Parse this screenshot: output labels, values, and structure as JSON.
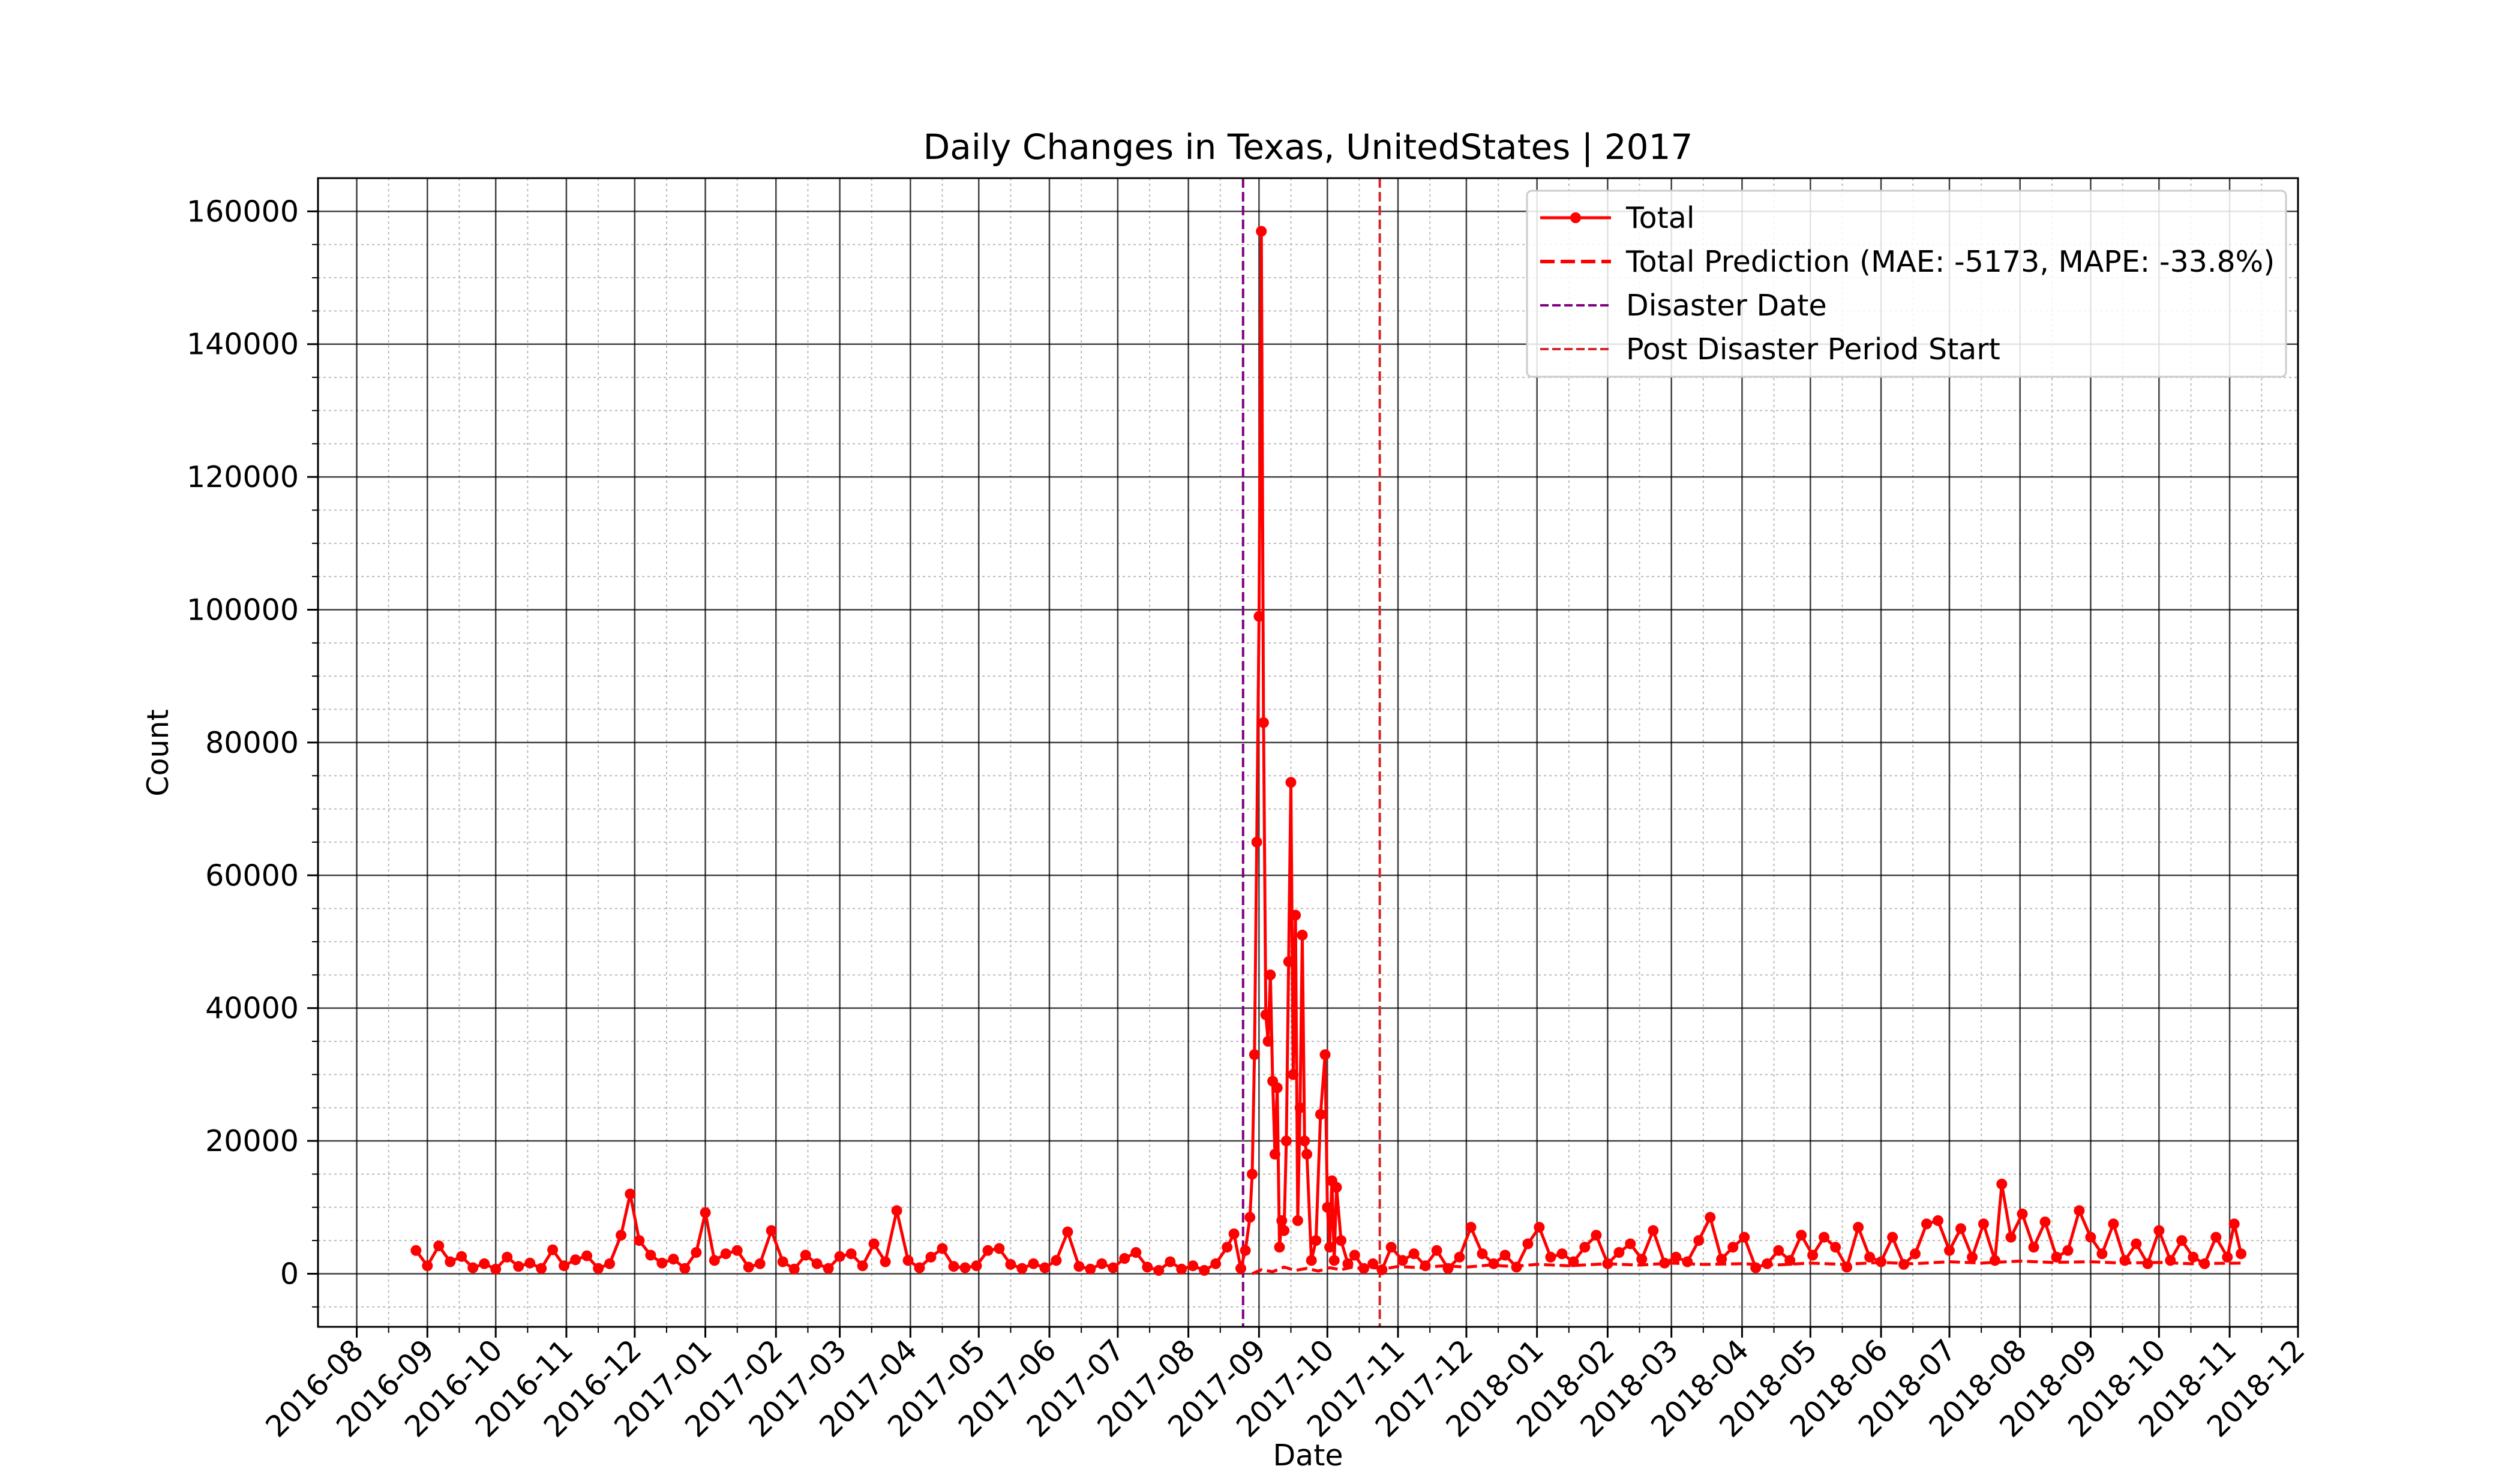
{
  "chart_data": {
    "type": "line",
    "title": "Daily Changes in Texas, UnitedStates | 2017",
    "xlabel": "Date",
    "ylabel": "Count",
    "xlim": [
      "2016-07-15",
      "2018-12-01"
    ],
    "ylim": [
      -8000,
      165000
    ],
    "grid": true,
    "legend_position": "top-right",
    "x_ticks": [
      "2016-08",
      "2016-09",
      "2016-10",
      "2016-11",
      "2016-12",
      "2017-01",
      "2017-02",
      "2017-03",
      "2017-04",
      "2017-05",
      "2017-06",
      "2017-07",
      "2017-08",
      "2017-09",
      "2017-10",
      "2017-11",
      "2017-12",
      "2018-01",
      "2018-02",
      "2018-03",
      "2018-04",
      "2018-05",
      "2018-06",
      "2018-07",
      "2018-08",
      "2018-09",
      "2018-10",
      "2018-11",
      "2018-12"
    ],
    "y_ticks": [
      0,
      20000,
      40000,
      60000,
      80000,
      100000,
      120000,
      140000,
      160000
    ],
    "series": [
      {
        "name": "Total",
        "color": "#ff0000",
        "style": "solid-markers",
        "points": [
          [
            "2016-08-27",
            3500
          ],
          [
            "2016-09-01",
            1200
          ],
          [
            "2016-09-06",
            4200
          ],
          [
            "2016-09-11",
            1800
          ],
          [
            "2016-09-16",
            2600
          ],
          [
            "2016-09-21",
            900
          ],
          [
            "2016-09-26",
            1500
          ],
          [
            "2016-10-01",
            700
          ],
          [
            "2016-10-06",
            2500
          ],
          [
            "2016-10-11",
            1100
          ],
          [
            "2016-10-16",
            1600
          ],
          [
            "2016-10-21",
            800
          ],
          [
            "2016-10-26",
            3600
          ],
          [
            "2016-10-31",
            1200
          ],
          [
            "2016-11-05",
            2100
          ],
          [
            "2016-11-10",
            2700
          ],
          [
            "2016-11-15",
            800
          ],
          [
            "2016-11-20",
            1500
          ],
          [
            "2016-11-25",
            5800
          ],
          [
            "2016-11-29",
            12000
          ],
          [
            "2016-12-03",
            5000
          ],
          [
            "2016-12-08",
            2800
          ],
          [
            "2016-12-13",
            1600
          ],
          [
            "2016-12-18",
            2200
          ],
          [
            "2016-12-23",
            800
          ],
          [
            "2016-12-28",
            3200
          ],
          [
            "2017-01-01",
            9200
          ],
          [
            "2017-01-05",
            2000
          ],
          [
            "2017-01-10",
            3000
          ],
          [
            "2017-01-15",
            3500
          ],
          [
            "2017-01-20",
            1000
          ],
          [
            "2017-01-25",
            1500
          ],
          [
            "2017-01-30",
            6500
          ],
          [
            "2017-02-04",
            1800
          ],
          [
            "2017-02-09",
            700
          ],
          [
            "2017-02-14",
            2800
          ],
          [
            "2017-02-19",
            1500
          ],
          [
            "2017-02-24",
            800
          ],
          [
            "2017-03-01",
            2600
          ],
          [
            "2017-03-06",
            3000
          ],
          [
            "2017-03-11",
            1200
          ],
          [
            "2017-03-16",
            4500
          ],
          [
            "2017-03-21",
            1800
          ],
          [
            "2017-03-26",
            9500
          ],
          [
            "2017-03-31",
            2000
          ],
          [
            "2017-04-05",
            900
          ],
          [
            "2017-04-10",
            2500
          ],
          [
            "2017-04-15",
            3800
          ],
          [
            "2017-04-20",
            1100
          ],
          [
            "2017-04-25",
            900
          ],
          [
            "2017-04-30",
            1200
          ],
          [
            "2017-05-05",
            3500
          ],
          [
            "2017-05-10",
            3800
          ],
          [
            "2017-05-15",
            1400
          ],
          [
            "2017-05-20",
            800
          ],
          [
            "2017-05-25",
            1500
          ],
          [
            "2017-05-30",
            900
          ],
          [
            "2017-06-04",
            2000
          ],
          [
            "2017-06-09",
            6300
          ],
          [
            "2017-06-14",
            1100
          ],
          [
            "2017-06-19",
            700
          ],
          [
            "2017-06-24",
            1500
          ],
          [
            "2017-06-29",
            900
          ],
          [
            "2017-07-04",
            2300
          ],
          [
            "2017-07-09",
            3200
          ],
          [
            "2017-07-14",
            1000
          ],
          [
            "2017-07-19",
            500
          ],
          [
            "2017-07-24",
            1800
          ],
          [
            "2017-07-29",
            700
          ],
          [
            "2017-08-03",
            1200
          ],
          [
            "2017-08-08",
            500
          ],
          [
            "2017-08-13",
            1500
          ],
          [
            "2017-08-18",
            4000
          ],
          [
            "2017-08-21",
            6000
          ],
          [
            "2017-08-24",
            800
          ],
          [
            "2017-08-26",
            3500
          ],
          [
            "2017-08-28",
            8500
          ],
          [
            "2017-08-29",
            15000
          ],
          [
            "2017-08-30",
            33000
          ],
          [
            "2017-08-31",
            65000
          ],
          [
            "2017-09-01",
            99000
          ],
          [
            "2017-09-02",
            157000
          ],
          [
            "2017-09-03",
            83000
          ],
          [
            "2017-09-04",
            39000
          ],
          [
            "2017-09-05",
            35000
          ],
          [
            "2017-09-06",
            45000
          ],
          [
            "2017-09-07",
            29000
          ],
          [
            "2017-09-08",
            18000
          ],
          [
            "2017-09-09",
            28000
          ],
          [
            "2017-09-10",
            4000
          ],
          [
            "2017-09-11",
            8000
          ],
          [
            "2017-09-12",
            6500
          ],
          [
            "2017-09-13",
            20000
          ],
          [
            "2017-09-14",
            47000
          ],
          [
            "2017-09-15",
            74000
          ],
          [
            "2017-09-16",
            30000
          ],
          [
            "2017-09-17",
            54000
          ],
          [
            "2017-09-18",
            8000
          ],
          [
            "2017-09-19",
            25000
          ],
          [
            "2017-09-20",
            51000
          ],
          [
            "2017-09-21",
            20000
          ],
          [
            "2017-09-22",
            18000
          ],
          [
            "2017-09-24",
            2000
          ],
          [
            "2017-09-26",
            5000
          ],
          [
            "2017-09-28",
            24000
          ],
          [
            "2017-09-30",
            33000
          ],
          [
            "2017-10-01",
            10000
          ],
          [
            "2017-10-02",
            4000
          ],
          [
            "2017-10-03",
            14000
          ],
          [
            "2017-10-04",
            2000
          ],
          [
            "2017-10-05",
            13000
          ],
          [
            "2017-10-07",
            5000
          ],
          [
            "2017-10-10",
            1500
          ],
          [
            "2017-10-13",
            2800
          ],
          [
            "2017-10-17",
            800
          ],
          [
            "2017-10-21",
            1500
          ],
          [
            "2017-10-25",
            600
          ],
          [
            "2017-10-29",
            4000
          ],
          [
            "2017-11-03",
            2000
          ],
          [
            "2017-11-08",
            3000
          ],
          [
            "2017-11-13",
            1200
          ],
          [
            "2017-11-18",
            3500
          ],
          [
            "2017-11-23",
            800
          ],
          [
            "2017-11-28",
            2500
          ],
          [
            "2017-12-03",
            7000
          ],
          [
            "2017-12-08",
            3000
          ],
          [
            "2017-12-13",
            1500
          ],
          [
            "2017-12-18",
            2800
          ],
          [
            "2017-12-23",
            1000
          ],
          [
            "2017-12-28",
            4500
          ],
          [
            "2018-01-02",
            7000
          ],
          [
            "2018-01-07",
            2500
          ],
          [
            "2018-01-12",
            3000
          ],
          [
            "2018-01-17",
            1800
          ],
          [
            "2018-01-22",
            4000
          ],
          [
            "2018-01-27",
            5800
          ],
          [
            "2018-02-01",
            1500
          ],
          [
            "2018-02-06",
            3200
          ],
          [
            "2018-02-11",
            4500
          ],
          [
            "2018-02-16",
            2200
          ],
          [
            "2018-02-21",
            6500
          ],
          [
            "2018-02-26",
            1600
          ],
          [
            "2018-03-03",
            2500
          ],
          [
            "2018-03-08",
            1800
          ],
          [
            "2018-03-13",
            5000
          ],
          [
            "2018-03-18",
            8500
          ],
          [
            "2018-03-23",
            2200
          ],
          [
            "2018-03-28",
            4000
          ],
          [
            "2018-04-02",
            5500
          ],
          [
            "2018-04-07",
            900
          ],
          [
            "2018-04-12",
            1500
          ],
          [
            "2018-04-17",
            3500
          ],
          [
            "2018-04-22",
            2000
          ],
          [
            "2018-04-27",
            5800
          ],
          [
            "2018-05-02",
            2800
          ],
          [
            "2018-05-07",
            5500
          ],
          [
            "2018-05-12",
            4000
          ],
          [
            "2018-05-17",
            1000
          ],
          [
            "2018-05-22",
            7000
          ],
          [
            "2018-05-27",
            2500
          ],
          [
            "2018-06-01",
            1800
          ],
          [
            "2018-06-06",
            5500
          ],
          [
            "2018-06-11",
            1400
          ],
          [
            "2018-06-16",
            3000
          ],
          [
            "2018-06-21",
            7500
          ],
          [
            "2018-06-26",
            8000
          ],
          [
            "2018-07-01",
            3500
          ],
          [
            "2018-07-06",
            6800
          ],
          [
            "2018-07-11",
            2500
          ],
          [
            "2018-07-16",
            7500
          ],
          [
            "2018-07-21",
            2000
          ],
          [
            "2018-07-24",
            13500
          ],
          [
            "2018-07-28",
            5500
          ],
          [
            "2018-08-02",
            9000
          ],
          [
            "2018-08-07",
            4000
          ],
          [
            "2018-08-12",
            7800
          ],
          [
            "2018-08-17",
            2500
          ],
          [
            "2018-08-22",
            3500
          ],
          [
            "2018-08-27",
            9500
          ],
          [
            "2018-09-01",
            5500
          ],
          [
            "2018-09-06",
            3000
          ],
          [
            "2018-09-11",
            7500
          ],
          [
            "2018-09-16",
            2000
          ],
          [
            "2018-09-21",
            4500
          ],
          [
            "2018-09-26",
            1500
          ],
          [
            "2018-10-01",
            6500
          ],
          [
            "2018-10-06",
            2000
          ],
          [
            "2018-10-11",
            5000
          ],
          [
            "2018-10-16",
            2500
          ],
          [
            "2018-10-21",
            1500
          ],
          [
            "2018-10-26",
            5500
          ],
          [
            "2018-10-31",
            2500
          ],
          [
            "2018-11-03",
            7500
          ],
          [
            "2018-11-06",
            3000
          ]
        ]
      },
      {
        "name": "Total Prediction (MAE: -5173, MAPE: -33.8%)",
        "color": "#ff0000",
        "style": "dashed",
        "points": [
          [
            "2017-08-29",
            0
          ],
          [
            "2017-09-02",
            600
          ],
          [
            "2017-09-07",
            300
          ],
          [
            "2017-09-12",
            1000
          ],
          [
            "2017-09-17",
            500
          ],
          [
            "2017-09-22",
            800
          ],
          [
            "2017-09-27",
            400
          ],
          [
            "2017-10-02",
            900
          ],
          [
            "2017-10-07",
            600
          ],
          [
            "2017-10-12",
            1000
          ],
          [
            "2017-10-17",
            700
          ],
          [
            "2017-10-22",
            900
          ],
          [
            "2017-10-27",
            800
          ],
          [
            "2017-11-01",
            1100
          ],
          [
            "2017-11-11",
            900
          ],
          [
            "2017-11-21",
            1200
          ],
          [
            "2017-12-01",
            1000
          ],
          [
            "2017-12-11",
            1300
          ],
          [
            "2017-12-21",
            1100
          ],
          [
            "2018-01-01",
            1400
          ],
          [
            "2018-01-15",
            1200
          ],
          [
            "2018-02-01",
            1500
          ],
          [
            "2018-02-15",
            1300
          ],
          [
            "2018-03-01",
            1600
          ],
          [
            "2018-03-15",
            1400
          ],
          [
            "2018-04-01",
            1500
          ],
          [
            "2018-04-15",
            1300
          ],
          [
            "2018-05-01",
            1600
          ],
          [
            "2018-05-15",
            1400
          ],
          [
            "2018-06-01",
            1700
          ],
          [
            "2018-06-15",
            1500
          ],
          [
            "2018-07-01",
            1800
          ],
          [
            "2018-07-15",
            1600
          ],
          [
            "2018-08-01",
            1900
          ],
          [
            "2018-08-15",
            1700
          ],
          [
            "2018-09-01",
            1800
          ],
          [
            "2018-09-15",
            1600
          ],
          [
            "2018-10-01",
            1700
          ],
          [
            "2018-10-15",
            1500
          ],
          [
            "2018-11-06",
            1600
          ]
        ]
      }
    ],
    "vlines": [
      {
        "name": "Disaster Date",
        "date": "2017-08-25",
        "color": "#800080",
        "style": "dashed"
      },
      {
        "name": "Post Disaster Period Start",
        "date": "2017-10-24",
        "color": "#d62728",
        "style": "dashed"
      }
    ],
    "legend": [
      {
        "label": "Total",
        "color": "#ff0000",
        "style": "solid-markers"
      },
      {
        "label": "Total Prediction (MAE: -5173, MAPE: -33.8%)",
        "color": "#ff0000",
        "style": "dashed-bold"
      },
      {
        "label": "Disaster Date",
        "color": "#800080",
        "style": "dashed"
      },
      {
        "label": "Post Disaster Period Start",
        "color": "#d62728",
        "style": "dashed"
      }
    ]
  }
}
